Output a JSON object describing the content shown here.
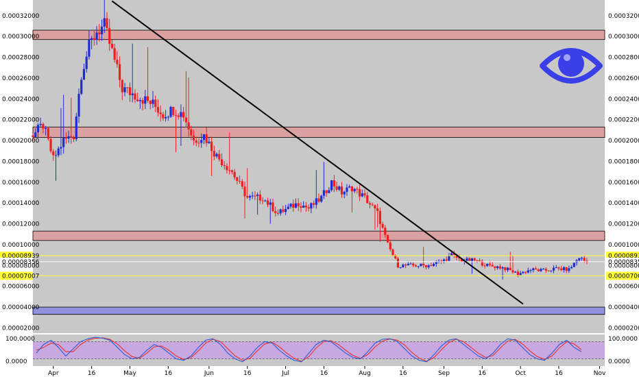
{
  "chart_data": {
    "type": "candlestick",
    "y_axis": {
      "ticks": [
        "0.00032000",
        "0.00030000",
        "0.00028000",
        "0.00026000",
        "0.00024000",
        "0.00022000",
        "0.00020000",
        "0.00018000",
        "0.00016000",
        "0.00014000",
        "0.00012000",
        "0.00010000",
        "0.00008000",
        "0.00006000",
        "0.00004000",
        "0.00002000"
      ],
      "ylim": [
        1.5e-05,
        0.000335
      ],
      "scale": "linear"
    },
    "x_axis": {
      "tick_labels": [
        "Apr",
        "16",
        "May",
        "16",
        "Jun",
        "16",
        "Jul",
        "16",
        "Aug",
        "16",
        "Sep",
        "16",
        "Oct",
        "16",
        "Nov"
      ],
      "x_range": [
        "2019-03-24",
        "2019-11-03"
      ]
    },
    "price_markers": {
      "upper": "0.00008939",
      "current": "0.00008356",
      "lower": "0.00007007"
    },
    "zones": [
      {
        "kind": "resistance",
        "low": 0.000297,
        "high": 0.000306,
        "color": "#d9a1a0"
      },
      {
        "kind": "resistance",
        "low": 0.000203,
        "high": 0.000213,
        "color": "#d9a1a0"
      },
      {
        "kind": "resistance",
        "low": 0.000104,
        "high": 0.000113,
        "color": "#d9a1a0"
      },
      {
        "kind": "support",
        "low": 3.3e-05,
        "high": 4e-05,
        "color": "#8f93dd"
      }
    ],
    "trendline": {
      "start": [
        "2019-04-24",
        0.000334
      ],
      "end": [
        "2019-10-02",
        4.3e-05
      ],
      "color": "#000000"
    },
    "close_series": {
      "dates": [
        "2019-03-24",
        "2019-03-28",
        "2019-04-01",
        "2019-04-05",
        "2019-04-09",
        "2019-04-12",
        "2019-04-15",
        "2019-04-18",
        "2019-04-21",
        "2019-04-24",
        "2019-04-28",
        "2019-05-02",
        "2019-05-06",
        "2019-05-10",
        "2019-05-14",
        "2019-05-18",
        "2019-05-22",
        "2019-05-26",
        "2019-05-30",
        "2019-06-04",
        "2019-06-10",
        "2019-06-16",
        "2019-06-22",
        "2019-06-28",
        "2019-07-02",
        "2019-07-06",
        "2019-07-10",
        "2019-07-15",
        "2019-07-19",
        "2019-07-23",
        "2019-07-27",
        "2019-08-01",
        "2019-08-06",
        "2019-08-10",
        "2019-08-14",
        "2019-08-20",
        "2019-08-26",
        "2019-09-01",
        "2019-09-04",
        "2019-09-08",
        "2019-09-13",
        "2019-09-18",
        "2019-09-24",
        "2019-09-30",
        "2019-10-05",
        "2019-10-10",
        "2019-10-15",
        "2019-10-20",
        "2019-10-24",
        "2019-10-27"
      ],
      "closes": [
        0.000205,
        0.000215,
        0.000182,
        0.0002,
        0.000205,
        0.000265,
        0.00029,
        0.000305,
        0.00031,
        0.000285,
        0.00025,
        0.000245,
        0.00024,
        0.000235,
        0.000225,
        0.00023,
        0.000225,
        0.0002,
        0.000205,
        0.000185,
        0.00017,
        0.000145,
        0.000145,
        0.00013,
        0.000135,
        0.00014,
        0.000135,
        0.000145,
        0.00016,
        0.00015,
        0.000155,
        0.000145,
        0.00013,
        0.0001,
        8e-05,
        8e-05,
        8e-05,
        8.5e-05,
        9e-05,
        8.5e-05,
        8.5e-05,
        8e-05,
        7.8e-05,
        7.2e-05,
        7.6e-05,
        7.5e-05,
        7.7e-05,
        7.6e-05,
        8.8e-05,
        8.3e-05
      ]
    },
    "oscillator": {
      "labels": [
        "100.0000",
        "0.0000"
      ],
      "upper_level": 80,
      "lower_level": 20,
      "range": [
        0,
        100
      ],
      "k_color": "#2d5bd8",
      "d_color": "#e8302e",
      "k": [
        40,
        70,
        85,
        60,
        30,
        55,
        80,
        90,
        95,
        92,
        85,
        60,
        35,
        20,
        25,
        50,
        70,
        60,
        40,
        20,
        15,
        30,
        60,
        85,
        90,
        70,
        40,
        20,
        10,
        30,
        60,
        80,
        75,
        50,
        30,
        15,
        10,
        40,
        70,
        85,
        80,
        60,
        40,
        25,
        20,
        45,
        75,
        88,
        90,
        80,
        55,
        30,
        15,
        10,
        35,
        65,
        85,
        90,
        70,
        50,
        30,
        20,
        40,
        70,
        90,
        85,
        60,
        35,
        20,
        15,
        40,
        70,
        85,
        60,
        45
      ],
      "d": [
        50,
        60,
        75,
        70,
        45,
        45,
        70,
        85,
        92,
        93,
        88,
        72,
        48,
        28,
        22,
        40,
        62,
        65,
        50,
        30,
        18,
        24,
        48,
        75,
        88,
        80,
        55,
        30,
        15,
        22,
        48,
        72,
        78,
        62,
        40,
        22,
        12,
        28,
        58,
        80,
        83,
        70,
        50,
        32,
        22,
        35,
        62,
        82,
        89,
        85,
        68,
        42,
        22,
        12,
        25,
        52,
        77,
        88,
        80,
        60,
        40,
        25,
        32,
        58,
        82,
        88,
        72,
        48,
        28,
        18,
        30,
        58,
        80,
        72,
        52
      ]
    },
    "colors": {
      "up_candle": "#1f2bd6",
      "down_candle": "#ef1f1f",
      "price_marker_highlight": "#ffff3b",
      "plot_background": "#c8c8c8",
      "oscillator_fill": "#c8a8e0"
    },
    "icons": {
      "watermark": "eye-icon",
      "watermark_color": "#3b3fe8"
    }
  }
}
